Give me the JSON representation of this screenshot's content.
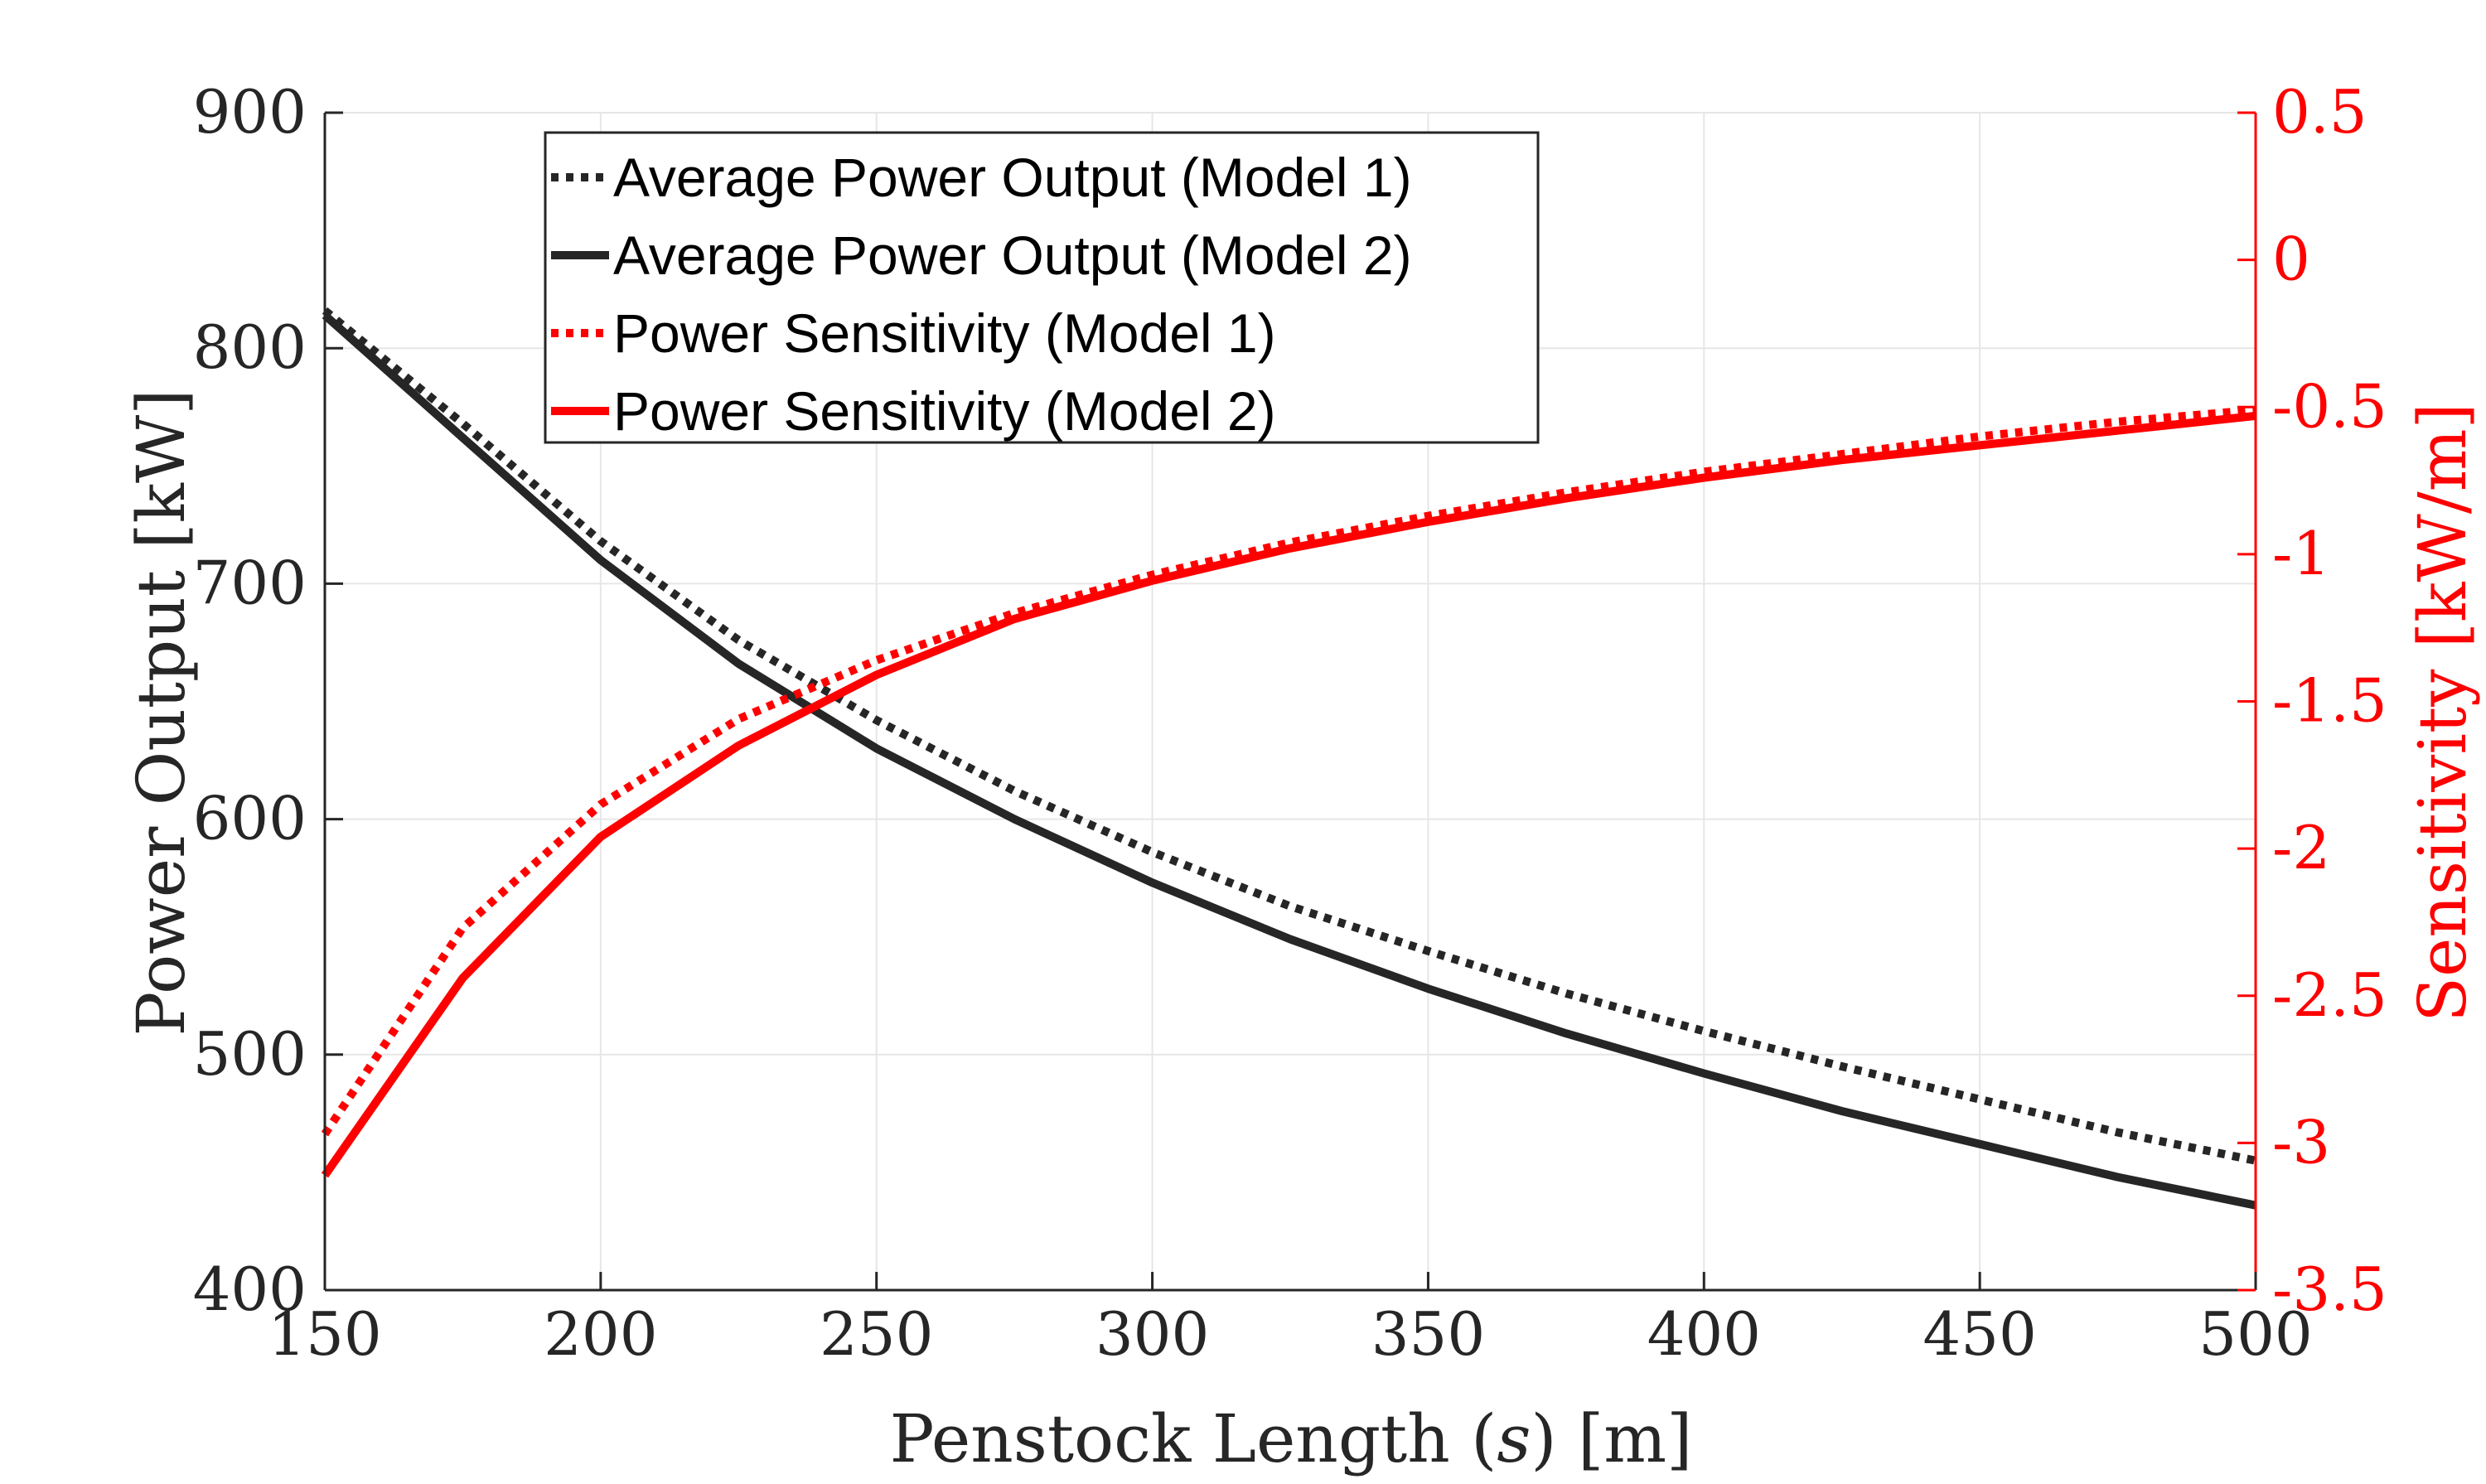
{
  "chart_data": {
    "type": "line",
    "xlabel": "Penstock Length (s) [m]",
    "xlabel_parts": {
      "before": "Penstock Length (",
      "var": "s",
      "after": ") [m]"
    },
    "ylabel_left": "Power Output [kW]",
    "ylabel_right": "Sensitivity [kW/m]",
    "xlim": [
      150,
      500
    ],
    "ylim_left": [
      400,
      900
    ],
    "ylim_right": [
      -3.5,
      0.5
    ],
    "x_ticks": [
      150,
      200,
      250,
      300,
      350,
      400,
      450,
      500
    ],
    "y_left_ticks": [
      400,
      500,
      600,
      700,
      800,
      900
    ],
    "y_right_ticks": [
      0.5,
      0,
      -0.5,
      -1,
      -1.5,
      -2,
      -2.5,
      -3,
      -3.5
    ],
    "y_right_tick_labels": [
      "0.5",
      "0",
      "-0.5",
      "-1",
      "-1.5",
      "-2",
      "-2.5",
      "-3",
      "-3.5"
    ],
    "grid": true,
    "legend_position": "top-left",
    "x": [
      150,
      175,
      200,
      225,
      250,
      275,
      300,
      325,
      350,
      375,
      400,
      425,
      450,
      475,
      500
    ],
    "series": [
      {
        "name": "Average Power Output (Model 1)",
        "axis": "left",
        "color": "#262626",
        "style": "dotted",
        "values": [
          816,
          768,
          718,
          676,
          642,
          612,
          586,
          563,
          544,
          526,
          510,
          495,
          481,
          467,
          455
        ]
      },
      {
        "name": "Average Power Output (Model 2)",
        "axis": "left",
        "color": "#262626",
        "style": "solid",
        "values": [
          814,
          762,
          710,
          666,
          630,
          600,
          573,
          549,
          528,
          509,
          492,
          476,
          462,
          448,
          436
        ]
      },
      {
        "name": "Power Sensitivity (Model 1)",
        "axis": "right",
        "color": "#ff0000",
        "style": "dotted",
        "values": [
          -2.97,
          -2.27,
          -1.85,
          -1.56,
          -1.36,
          -1.2,
          -1.07,
          -0.96,
          -0.87,
          -0.79,
          -0.72,
          -0.66,
          -0.6,
          -0.55,
          -0.51
        ]
      },
      {
        "name": "Power Sensitivity (Model 2)",
        "axis": "right",
        "color": "#ff0000",
        "style": "solid",
        "values": [
          -3.11,
          -2.44,
          -1.96,
          -1.65,
          -1.41,
          -1.22,
          -1.09,
          -0.98,
          -0.89,
          -0.81,
          -0.74,
          -0.68,
          -0.63,
          -0.58,
          -0.53
        ]
      }
    ]
  },
  "colors": {
    "axis_left": "#262626",
    "axis_right": "#ff0000",
    "grid": "#e6e6e6"
  }
}
